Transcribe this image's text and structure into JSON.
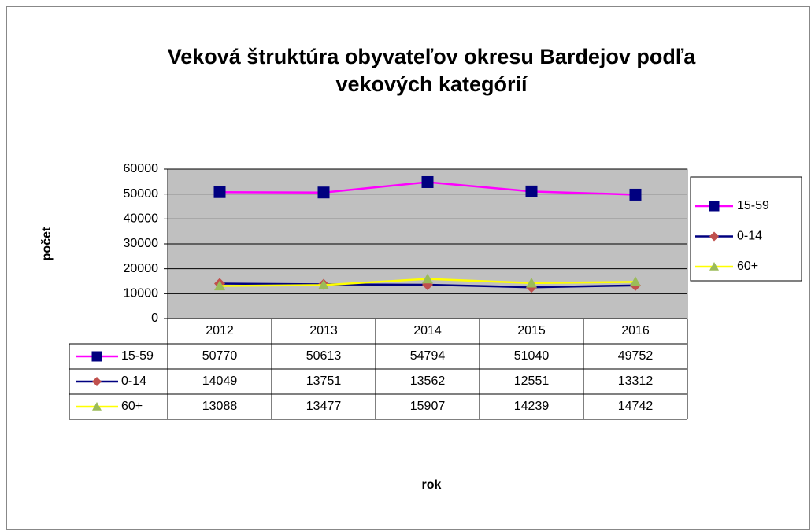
{
  "chart_data": {
    "type": "line",
    "title": [
      "Veková štruktúra obyvateľov okresu Bardejov podľa",
      "vekových kategórií"
    ],
    "y_label": "počet",
    "x_label": "rok",
    "categories": [
      "2012",
      "2013",
      "2014",
      "2015",
      "2016"
    ],
    "series": [
      {
        "name": "15-59",
        "color": "#ff00ff",
        "marker": "square",
        "marker_color": "#000080",
        "values": [
          50770,
          50613,
          54794,
          51040,
          49752
        ]
      },
      {
        "name": "0-14",
        "color": "#000080",
        "marker": "diamond",
        "marker_color": "#c0504d",
        "values": [
          14049,
          13751,
          13562,
          12551,
          13312
        ]
      },
      {
        "name": "60+",
        "color": "#ffff00",
        "marker": "triangle",
        "marker_color": "#9bbb59",
        "values": [
          13088,
          13477,
          15907,
          14239,
          14742
        ]
      }
    ],
    "ylim": [
      0,
      60000
    ],
    "yticks": [
      0,
      10000,
      20000,
      30000,
      40000,
      50000,
      60000
    ],
    "grid": true,
    "plot_background": "#c0c0c0",
    "legend": "right",
    "data_table": true
  }
}
